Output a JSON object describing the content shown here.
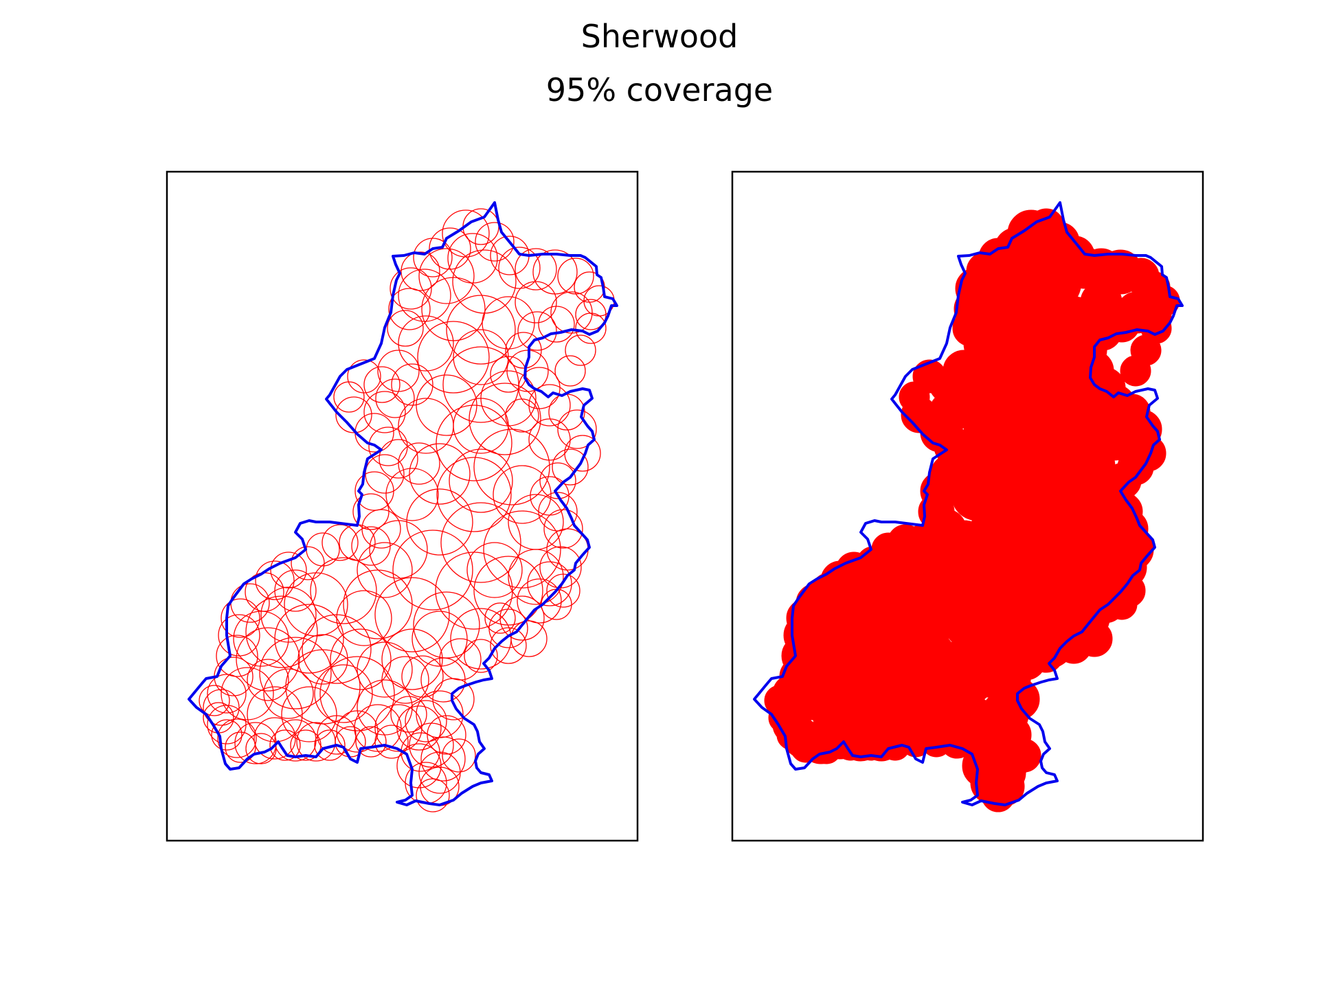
{
  "title": "Sherwood",
  "subtitle": "95% coverage",
  "colors": {
    "boundary": "#0000ee",
    "circles": "#ff0000",
    "frame": "#000000",
    "background": "#ffffff"
  },
  "panels": [
    {
      "style": "circle outlines"
    },
    {
      "style": "filled circles"
    }
  ]
}
